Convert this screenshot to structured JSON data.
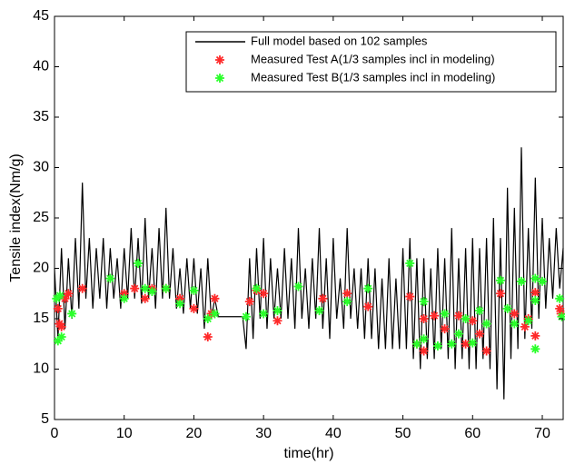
{
  "chart_data": {
    "type": "line",
    "x_label": "time(hr)",
    "y_label": "Tensile index(Nm/g)",
    "xlim": [
      0,
      73
    ],
    "ylim": [
      5,
      45
    ],
    "xticks": [
      0,
      10,
      20,
      30,
      40,
      50,
      60,
      70
    ],
    "yticks": [
      5,
      10,
      15,
      20,
      25,
      30,
      35,
      40,
      45
    ],
    "legend": "upper right",
    "series": [
      {
        "name": "Full model based on 102 samples",
        "color": "#000000",
        "type": "line",
        "x": [
          0,
          0.5,
          1,
          1.5,
          2,
          2.5,
          3,
          3.5,
          4,
          4.5,
          5,
          5.5,
          6,
          6.5,
          7,
          7.5,
          8,
          8.5,
          9,
          9.5,
          10,
          10.5,
          11,
          11.5,
          12,
          12.5,
          13,
          13.5,
          14,
          14.5,
          15,
          15.5,
          16,
          16.5,
          17,
          17.5,
          18,
          18.5,
          19,
          19.5,
          20,
          20.5,
          21,
          21.5,
          22,
          22.5,
          23,
          23.5,
          24,
          24.5,
          25,
          25.5,
          26,
          26.5,
          27,
          27.5,
          28,
          28.5,
          29,
          29.5,
          30,
          30.5,
          31,
          31.5,
          32,
          32.5,
          33,
          33.5,
          34,
          34.5,
          35,
          35.5,
          36,
          36.5,
          37,
          37.5,
          38,
          38.5,
          39,
          39.5,
          40,
          40.5,
          41,
          41.5,
          42,
          42.5,
          43,
          43.5,
          44,
          44.5,
          45,
          45.5,
          46,
          46.5,
          47,
          47.5,
          48,
          48.5,
          49,
          49.5,
          50,
          50.5,
          51,
          51.5,
          52,
          52.5,
          53,
          53.5,
          54,
          54.5,
          55,
          55.5,
          56,
          56.5,
          57,
          57.5,
          58,
          58.5,
          59,
          59.5,
          60,
          60.5,
          61,
          61.5,
          62,
          62.5,
          63,
          63.5,
          64,
          64.5,
          65,
          65.5,
          66,
          66.5,
          67,
          67.5,
          68,
          68.5,
          69,
          69.5,
          70,
          70.5,
          71,
          71.5,
          72,
          72.5,
          73
        ],
        "values": [
          20,
          13,
          22,
          14,
          21,
          15,
          23,
          16,
          28.5,
          17,
          23,
          16,
          22,
          17,
          23,
          16,
          22,
          17,
          21,
          16,
          22,
          17,
          24,
          17,
          23,
          16.5,
          25,
          17,
          22,
          16,
          24,
          17,
          26,
          17,
          22,
          16,
          20,
          15.5,
          21,
          16,
          21,
          15.5,
          20,
          14,
          21,
          15,
          17,
          15.2,
          15.2,
          15.2,
          15.2,
          15.2,
          15.2,
          15.2,
          15.2,
          12,
          21,
          13,
          22,
          15,
          23,
          14,
          21,
          15,
          20,
          15,
          22,
          15,
          21,
          14,
          24,
          15,
          20,
          14,
          21,
          15,
          24,
          14,
          21,
          13,
          23,
          15,
          19,
          14,
          24,
          15,
          20,
          14,
          20,
          13,
          21,
          13,
          20,
          12,
          19,
          12,
          21,
          12,
          19,
          12,
          22,
          12,
          23,
          11,
          21,
          10,
          21,
          11,
          20,
          11,
          22,
          12,
          21,
          11,
          24,
          10,
          21,
          11,
          22,
          10,
          23,
          10,
          22,
          11,
          23,
          10,
          25,
          8,
          23,
          7,
          28,
          11,
          26,
          12,
          32,
          13,
          24,
          14,
          29,
          15,
          25,
          16,
          23,
          17,
          24,
          18,
          22
        ]
      },
      {
        "name": "Measured Test A(1/3 samples incl in modeling)",
        "color": "#ff2a2a",
        "type": "scatter",
        "x": [
          0.5,
          0.7,
          1,
          1.5,
          2,
          4,
          10,
          11.5,
          13,
          14,
          16,
          18,
          20,
          22,
          22.5,
          23,
          28,
          29,
          30,
          32,
          38.5,
          42,
          45,
          51,
          52,
          53,
          53,
          54.5,
          56,
          58,
          59,
          60,
          61,
          62,
          64,
          66,
          67.5,
          68,
          69,
          69,
          72.5,
          72.7
        ],
        "values": [
          16,
          14.5,
          14.2,
          17,
          17.5,
          18,
          17.5,
          18,
          17,
          18,
          18,
          17,
          16,
          13.2,
          15.5,
          17,
          16.7,
          17.8,
          17.5,
          14.8,
          17,
          17.5,
          16.2,
          17.2,
          12.5,
          15,
          11.8,
          15.3,
          14,
          15.3,
          12.5,
          14.8,
          13.5,
          11.8,
          17.5,
          15.5,
          14.2,
          15,
          17.6,
          13.3,
          16,
          15.5
        ]
      },
      {
        "name": "Measured Test B(1/3 samples incl in modeling)",
        "color": "#2aff2a",
        "type": "scatter",
        "x": [
          0.3,
          0.5,
          0.8,
          1,
          2.5,
          8,
          10,
          12,
          13,
          14,
          16,
          18,
          20,
          22,
          23,
          27.5,
          29,
          30,
          32,
          35,
          38,
          42,
          45,
          51,
          52,
          53,
          53,
          55,
          56,
          57,
          58,
          59,
          60,
          61,
          62,
          64,
          65,
          66,
          67,
          68,
          69,
          69,
          69,
          70,
          72.5,
          72.8
        ],
        "values": [
          17,
          12.8,
          17.3,
          13.2,
          15.5,
          19,
          17,
          20.5,
          18,
          17.7,
          18,
          16.5,
          17.8,
          15,
          15.5,
          15.2,
          18,
          15.5,
          15.8,
          18.2,
          15.8,
          16.7,
          18,
          20.5,
          12.5,
          16.7,
          13,
          12.3,
          15.5,
          12.5,
          13.5,
          15,
          12.6,
          15.8,
          14.5,
          18.8,
          16,
          14.5,
          18.7,
          14.8,
          19,
          16.8,
          12,
          18.7,
          17,
          15.2
        ]
      }
    ]
  }
}
